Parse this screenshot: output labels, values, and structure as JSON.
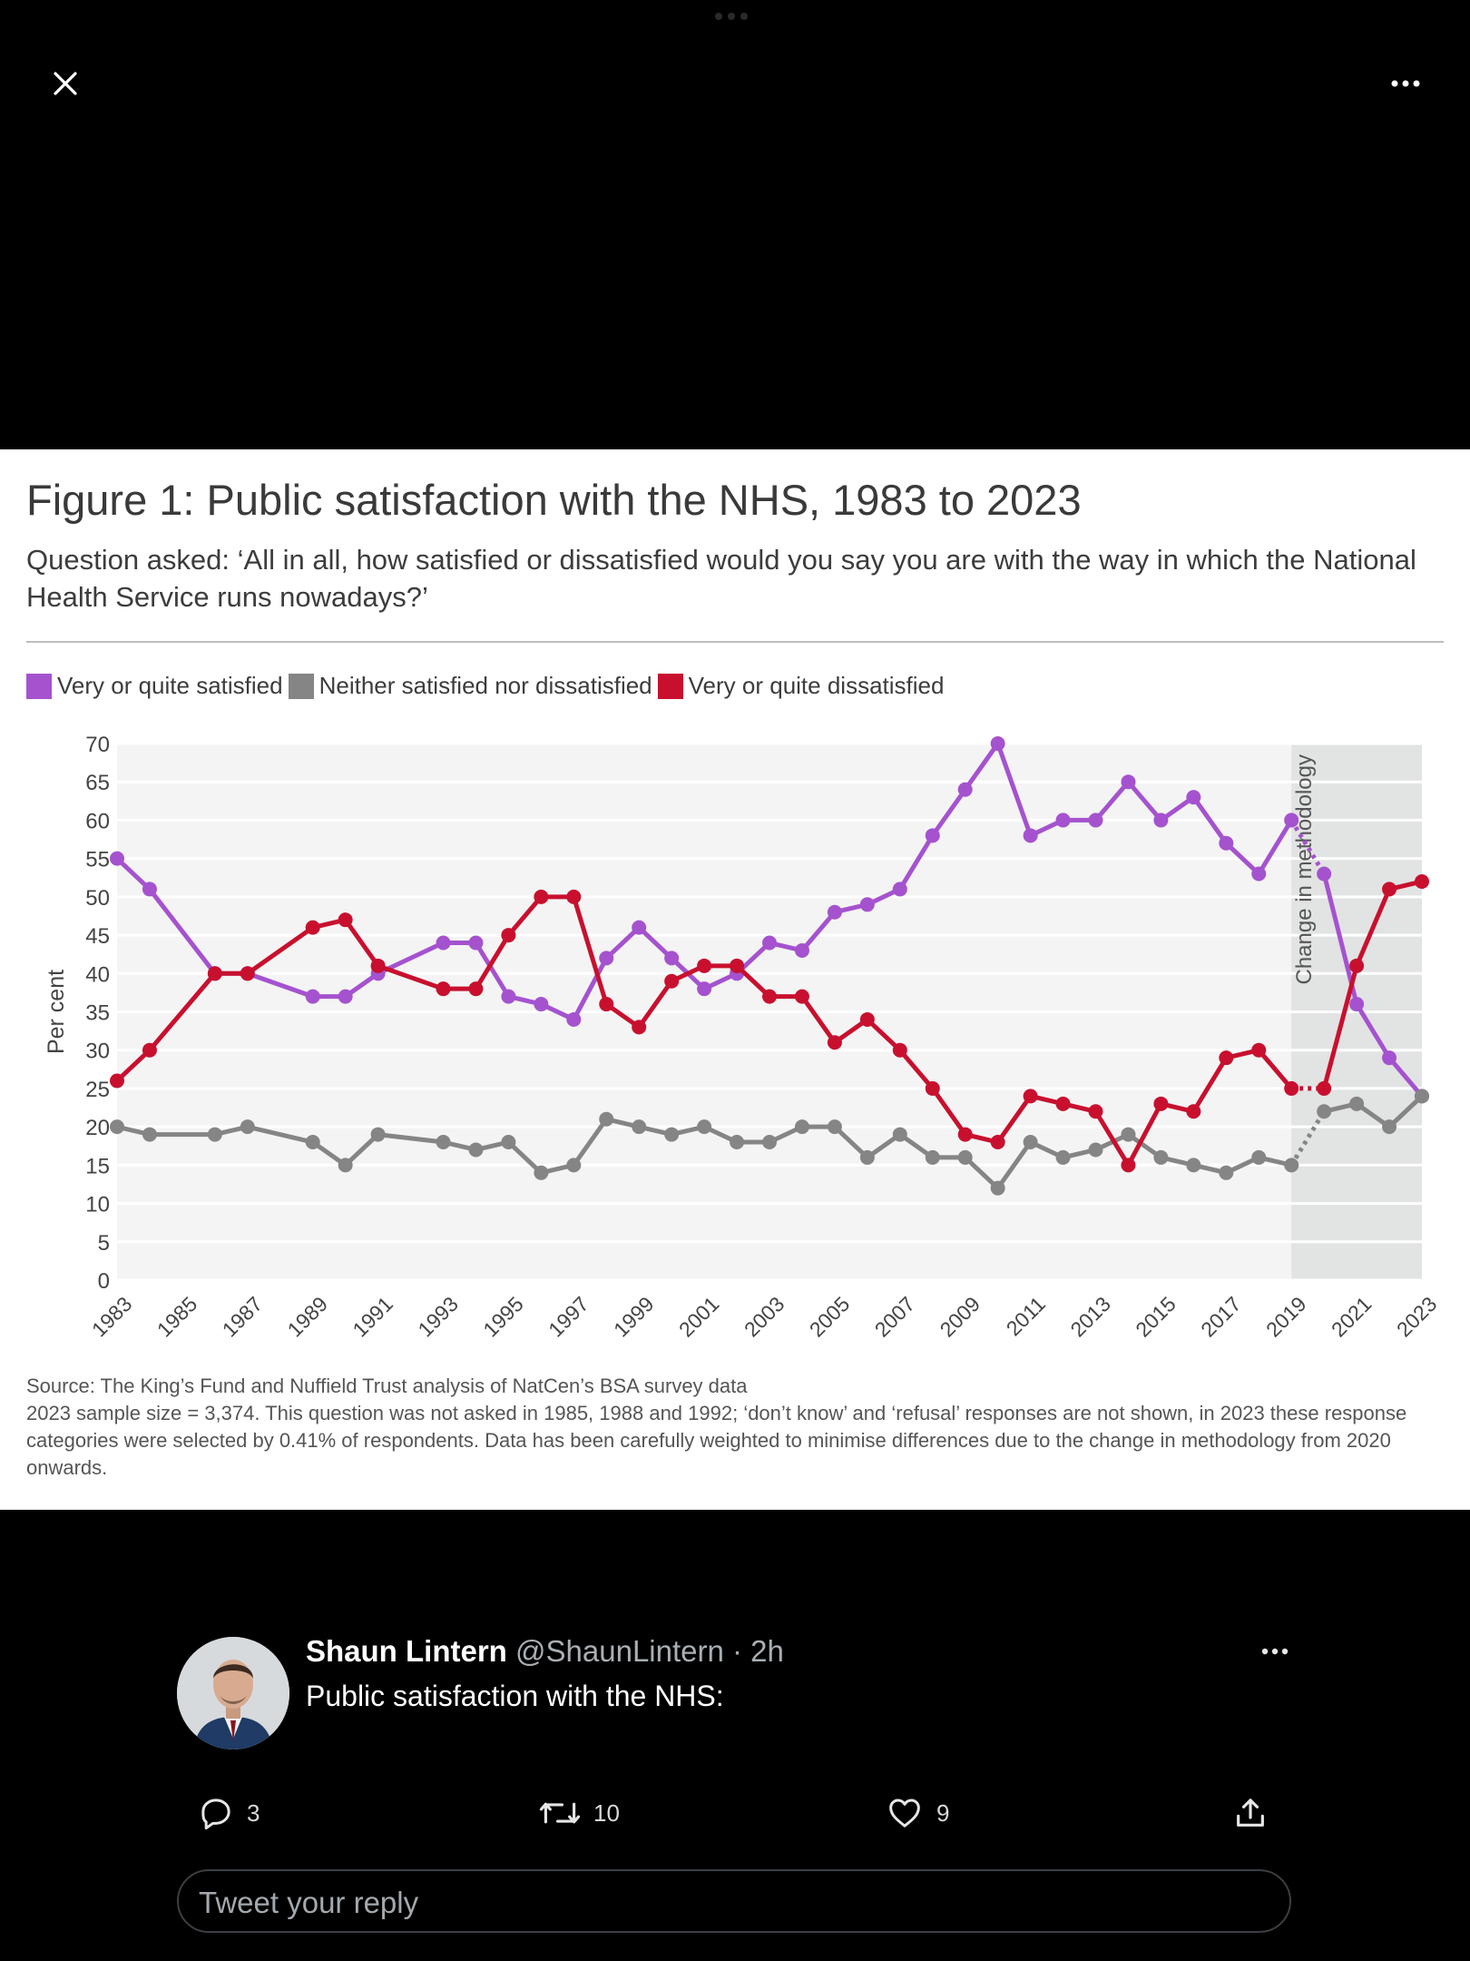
{
  "viewer": {
    "close_icon": "close-icon",
    "more_icon": "more-horizontal-icon"
  },
  "figure": {
    "title": "Figure 1: Public satisfaction with the NHS, 1983 to 2023",
    "subtitle": "Question asked: ‘All in all, how satisfied or dissatisfied would you say you are with the way in which the National Health Service runs nowadays?’",
    "legend": [
      {
        "label": "Very or quite satisfied",
        "color": "#a552cf"
      },
      {
        "label": "Neither satisfied nor dissatisfied",
        "color": "#858585"
      },
      {
        "label": "Very or quite dissatisfied",
        "color": "#c8102e"
      }
    ],
    "source_lines": [
      "Source: The King’s Fund and Nuffield Trust analysis of NatCen’s BSA survey data",
      "2023 sample size = 3,374. This question was not asked in 1985, 1988 and 1992; ‘don’t know’ and ‘refusal’ responses are not shown, in 2023 these response categories were selected by 0.41% of respondents. Data has been carefully weighted to minimise differences due to the change in methodology from 2020 onwards."
    ]
  },
  "chart_data": {
    "type": "line",
    "ylabel": "Per cent",
    "ylim": [
      0,
      70
    ],
    "yticks": [
      0,
      5,
      10,
      15,
      20,
      25,
      30,
      35,
      40,
      45,
      50,
      55,
      60,
      65,
      70
    ],
    "xlim": [
      1983,
      2023
    ],
    "xticks": [
      1983,
      1985,
      1987,
      1989,
      1991,
      1993,
      1995,
      1997,
      1999,
      2001,
      2003,
      2005,
      2007,
      2009,
      2011,
      2013,
      2015,
      2017,
      2019,
      2021,
      2023
    ],
    "grid": true,
    "legend_position": "top-left",
    "annotation": {
      "text": "Change in methodology",
      "x_from": 2019,
      "x_to": 2023
    },
    "x": [
      1983,
      1984,
      1986,
      1987,
      1989,
      1990,
      1991,
      1993,
      1994,
      1995,
      1996,
      1997,
      1998,
      1999,
      2000,
      2001,
      2002,
      2003,
      2004,
      2005,
      2006,
      2007,
      2008,
      2009,
      2010,
      2011,
      2012,
      2013,
      2014,
      2015,
      2016,
      2017,
      2018,
      2019,
      2020,
      2021,
      2022,
      2023
    ],
    "series": [
      {
        "name": "Very or quite satisfied",
        "color": "#a552cf",
        "values": [
          55,
          51,
          40,
          40,
          37,
          37,
          40,
          44,
          44,
          37,
          36,
          34,
          42,
          46,
          42,
          38,
          40,
          44,
          43,
          48,
          49,
          51,
          58,
          64,
          70,
          58,
          60,
          60,
          65,
          60,
          63,
          57,
          53,
          60,
          53,
          36,
          29,
          24
        ]
      },
      {
        "name": "Neither satisfied nor dissatisfied",
        "color": "#858585",
        "values": [
          20,
          19,
          19,
          20,
          18,
          15,
          19,
          18,
          17,
          18,
          14,
          15,
          21,
          20,
          19,
          20,
          18,
          18,
          20,
          20,
          16,
          19,
          16,
          16,
          12,
          18,
          16,
          17,
          19,
          16,
          15,
          14,
          16,
          15,
          22,
          23,
          20,
          24
        ]
      },
      {
        "name": "Very or quite dissatisfied",
        "color": "#c8102e",
        "values": [
          26,
          30,
          40,
          40,
          46,
          47,
          41,
          38,
          38,
          45,
          50,
          50,
          36,
          33,
          39,
          41,
          41,
          37,
          37,
          31,
          34,
          30,
          25,
          19,
          18,
          24,
          23,
          22,
          15,
          23,
          22,
          29,
          30,
          25,
          25,
          41,
          51,
          52
        ]
      }
    ]
  },
  "tweet": {
    "name": "Shaun Lintern",
    "handle": "@ShaunLintern",
    "time": "2h",
    "text": "Public satisfaction with the NHS:",
    "replies": "3",
    "retweets": "10",
    "likes": "9",
    "reply_placeholder": "Tweet your reply"
  }
}
